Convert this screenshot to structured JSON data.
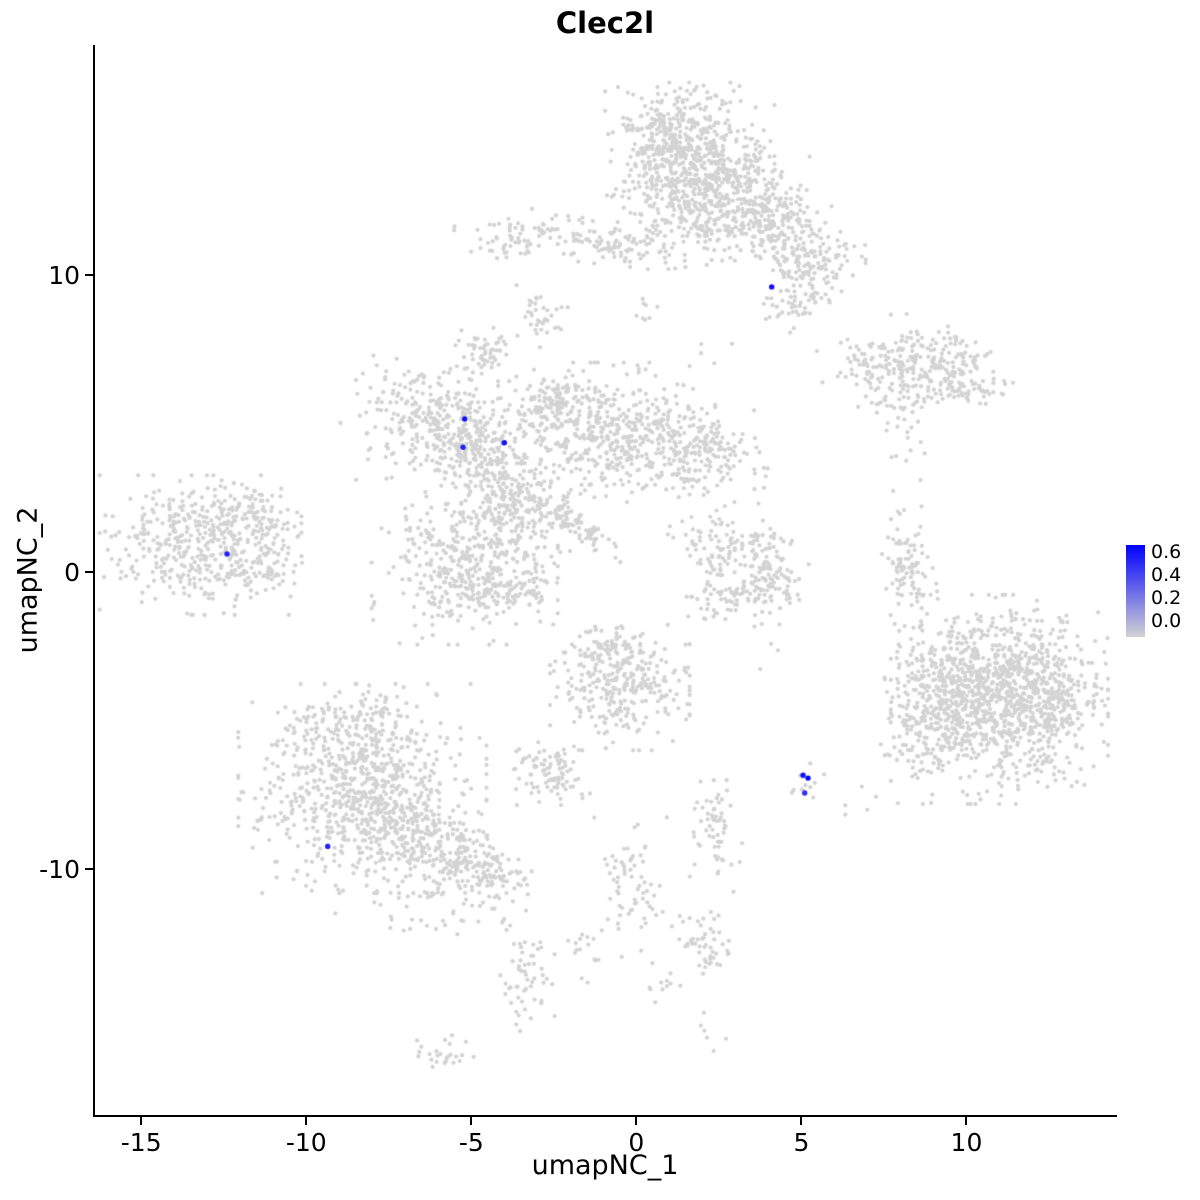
{
  "chart_data": {
    "type": "scatter",
    "title": "Clec2l",
    "xlabel": "umapNC_1",
    "ylabel": "umapNC_2",
    "xlim": [
      -16.4,
      14.5
    ],
    "ylim": [
      -18.3,
      17.75
    ],
    "grid": false,
    "background": "#ffffff",
    "x_ticks": {
      "values": [
        -15,
        -10,
        -5,
        0,
        5,
        10
      ],
      "labels": [
        "-15",
        "-10",
        "-5",
        "0",
        "5",
        "10"
      ]
    },
    "y_ticks": {
      "values": [
        10,
        0,
        -10
      ],
      "labels": [
        "10",
        "0",
        "-10"
      ]
    },
    "legend": {
      "position": "right",
      "ticks": [
        "0.6",
        "0.4",
        "0.2",
        "0.0"
      ],
      "vmin": 0.0,
      "vmax": 0.65,
      "low_color": "#d3d3d3",
      "high_color": "#0000ff"
    },
    "seed": 42,
    "cluster_format": [
      "center_x",
      "center_y",
      "sigma_x",
      "sigma_y",
      "rot_deg",
      "n_points"
    ],
    "background_clusters": [
      [
        1.6,
        13.9,
        1.1,
        1.1,
        0,
        500
      ],
      [
        0.7,
        14.6,
        0.7,
        0.8,
        0,
        150
      ],
      [
        2.9,
        12.6,
        1.0,
        0.9,
        0,
        250
      ],
      [
        4.2,
        11.6,
        0.9,
        0.7,
        -30,
        180
      ],
      [
        5.3,
        10.3,
        0.7,
        0.7,
        0,
        120
      ],
      [
        1.7,
        11.6,
        0.8,
        0.6,
        0,
        60
      ],
      [
        4.9,
        9.0,
        0.5,
        0.4,
        0,
        40
      ],
      [
        -2.0,
        11.3,
        1.5,
        0.35,
        -5,
        110
      ],
      [
        -0.2,
        10.9,
        0.6,
        0.3,
        0,
        40
      ],
      [
        -3.9,
        11.0,
        0.35,
        0.25,
        0,
        25
      ],
      [
        -2.9,
        8.6,
        0.35,
        0.45,
        0,
        35
      ],
      [
        -4.6,
        7.4,
        0.45,
        0.35,
        0,
        55
      ],
      [
        7.3,
        7.0,
        0.8,
        0.45,
        -10,
        90
      ],
      [
        9.2,
        7.2,
        1.0,
        0.5,
        -15,
        140
      ],
      [
        9.8,
        6.3,
        0.6,
        0.35,
        0,
        60
      ],
      [
        8.2,
        5.9,
        0.7,
        0.35,
        10,
        50
      ],
      [
        8.3,
        4.6,
        0.4,
        0.5,
        0,
        12
      ],
      [
        8.1,
        3.2,
        0.3,
        0.6,
        0,
        6
      ],
      [
        -6.2,
        5.2,
        1.1,
        0.8,
        -20,
        260
      ],
      [
        -5.0,
        4.3,
        0.7,
        0.6,
        0,
        140
      ],
      [
        -4.2,
        2.8,
        0.55,
        0.9,
        15,
        130
      ],
      [
        -3.2,
        2.2,
        0.7,
        0.7,
        0,
        110
      ],
      [
        -0.9,
        4.7,
        1.4,
        1.0,
        0,
        420
      ],
      [
        1.7,
        4.1,
        1.0,
        0.7,
        -10,
        220
      ],
      [
        -2.4,
        5.4,
        0.7,
        0.6,
        0,
        120
      ],
      [
        -5.2,
        0.6,
        1.2,
        1.3,
        0,
        380
      ],
      [
        -4.4,
        -0.6,
        0.8,
        0.5,
        0,
        90
      ],
      [
        -1.9,
        1.6,
        0.85,
        0.22,
        -40,
        80
      ],
      [
        -2.9,
        0.0,
        0.4,
        0.6,
        0,
        30
      ],
      [
        2.6,
        2.0,
        0.5,
        0.5,
        0,
        8
      ],
      [
        -13.2,
        0.9,
        1.3,
        1.0,
        0,
        420
      ],
      [
        -11.6,
        1.9,
        0.7,
        0.5,
        -25,
        90
      ],
      [
        -11.3,
        0.2,
        0.5,
        0.4,
        0,
        40
      ],
      [
        3.1,
        0.9,
        1.0,
        0.4,
        -10,
        90
      ],
      [
        4.0,
        -0.2,
        0.45,
        0.7,
        0,
        80
      ],
      [
        3.0,
        -0.9,
        0.8,
        0.35,
        10,
        70
      ],
      [
        2.3,
        0.2,
        0.3,
        0.5,
        0,
        30
      ],
      [
        8.2,
        0.3,
        0.35,
        1.0,
        5,
        90
      ],
      [
        11.0,
        -4.3,
        1.4,
        1.5,
        0,
        900
      ],
      [
        12.3,
        -4.0,
        0.7,
        1.0,
        0,
        200
      ],
      [
        9.4,
        -3.6,
        0.8,
        1.1,
        0,
        180
      ],
      [
        8.7,
        -5.2,
        0.6,
        0.9,
        0,
        120
      ],
      [
        -8.3,
        -7.3,
        1.6,
        1.5,
        0,
        800
      ],
      [
        -6.0,
        -9.3,
        1.2,
        0.7,
        -25,
        260
      ],
      [
        -4.4,
        -10.2,
        0.6,
        0.4,
        -20,
        70
      ],
      [
        -9.0,
        -5.2,
        1.0,
        0.5,
        0,
        70
      ],
      [
        -6.3,
        -11.6,
        1.2,
        0.35,
        0,
        30
      ],
      [
        -0.5,
        -3.9,
        0.9,
        0.9,
        0,
        280
      ],
      [
        -0.9,
        -2.6,
        0.5,
        0.4,
        0,
        60
      ],
      [
        -2.7,
        -6.8,
        0.55,
        0.45,
        0,
        90
      ],
      [
        5.1,
        -7.1,
        0.25,
        0.3,
        0,
        12
      ],
      [
        2.4,
        -8.9,
        0.4,
        0.8,
        0,
        60
      ],
      [
        -0.1,
        -10.6,
        0.5,
        1.1,
        0,
        70
      ],
      [
        2.1,
        -12.6,
        0.45,
        0.5,
        0,
        50
      ],
      [
        -3.3,
        -13.7,
        0.35,
        0.8,
        0,
        55
      ],
      [
        -6.0,
        -16.2,
        0.5,
        0.25,
        0,
        25
      ],
      [
        -1.6,
        -12.9,
        0.3,
        0.4,
        0,
        15
      ],
      [
        0.8,
        -13.8,
        0.3,
        0.3,
        0,
        10
      ],
      [
        4.1,
        -2.1,
        0.3,
        0.5,
        0,
        6
      ],
      [
        6.6,
        -8.0,
        0.4,
        0.4,
        0,
        5
      ],
      [
        -7.6,
        3.4,
        0.4,
        0.3,
        0,
        6
      ],
      [
        0.3,
        8.6,
        0.25,
        0.5,
        0,
        8
      ],
      [
        2.2,
        7.4,
        0.3,
        0.3,
        0,
        5
      ],
      [
        2.8,
        -15.5,
        0.4,
        0.3,
        0,
        6
      ]
    ],
    "highlight_points": [
      {
        "x": 4.1,
        "y": 9.6,
        "value": 0.6
      },
      {
        "x": -5.2,
        "y": 5.15,
        "value": 0.6
      },
      {
        "x": -5.25,
        "y": 4.2,
        "value": 0.55
      },
      {
        "x": -4.0,
        "y": 4.35,
        "value": 0.6
      },
      {
        "x": -12.4,
        "y": 0.6,
        "value": 0.55
      },
      {
        "x": 5.05,
        "y": -6.85,
        "value": 0.6
      },
      {
        "x": 5.2,
        "y": -6.95,
        "value": 0.65
      },
      {
        "x": 5.1,
        "y": -7.45,
        "value": 0.5
      },
      {
        "x": -9.35,
        "y": -9.25,
        "value": 0.55
      }
    ]
  }
}
